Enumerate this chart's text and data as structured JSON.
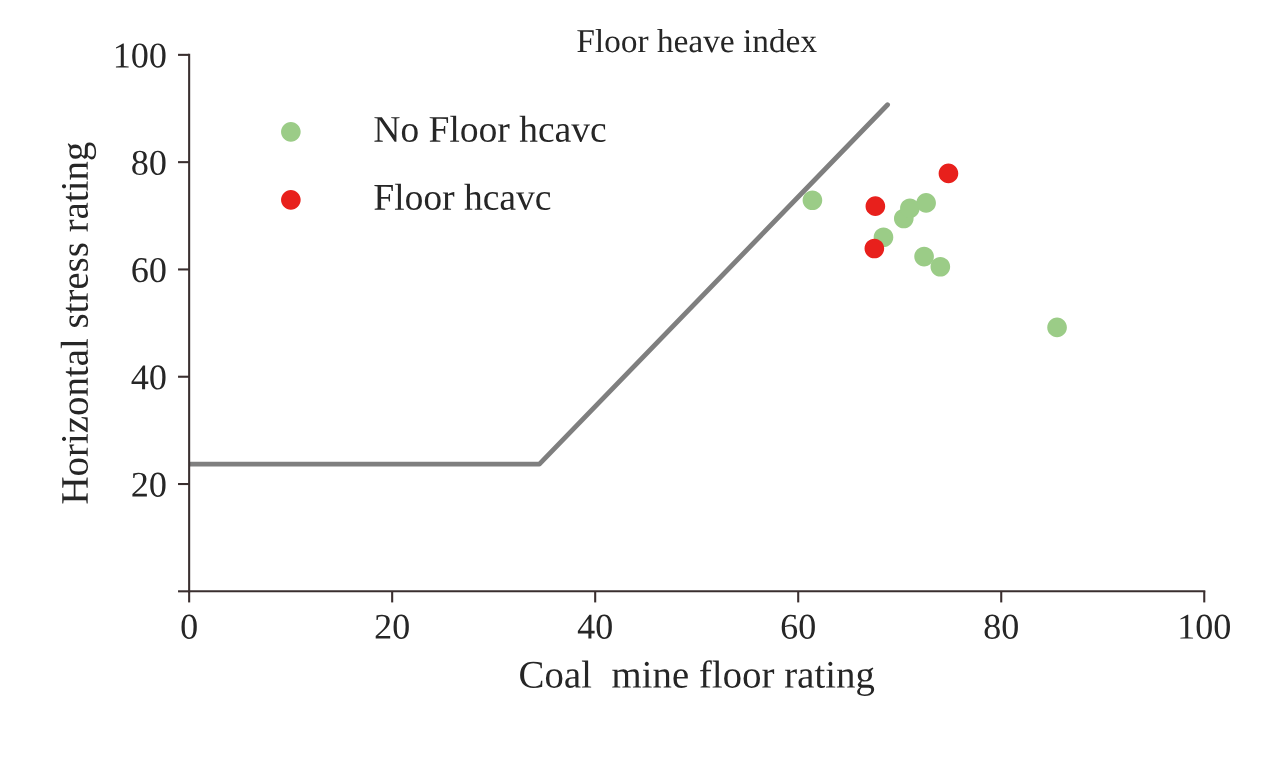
{
  "chart_data": {
    "type": "scatter",
    "title": "Floor heave index",
    "xlabel": "Coal  mine floor rating",
    "ylabel": "Horizontal stress rating",
    "xlim": [
      0,
      100
    ],
    "ylim": [
      0,
      100
    ],
    "xticks": [
      0,
      20,
      40,
      60,
      80,
      100
    ],
    "yticks": [
      {
        "value": 0,
        "label": null
      },
      20,
      40,
      60,
      80,
      100
    ],
    "legend": "top left",
    "grid": false,
    "series": [
      {
        "name": "No Floor hcavc",
        "marker": "circle",
        "color": "#9bcc87",
        "x": [
          61.4,
          68.4,
          70.4,
          71.0,
          72.6,
          72.4,
          74.0,
          85.5
        ],
        "values": [
          72.9,
          66.0,
          69.5,
          71.4,
          72.4,
          62.4,
          60.5,
          49.2
        ]
      },
      {
        "name": "Floor hcavc",
        "marker": "circle",
        "color": "#e8201c",
        "x": [
          67.6,
          74.8,
          67.5
        ],
        "values": [
          71.8,
          77.9,
          63.9
        ]
      },
      {
        "type": "line",
        "marker": "none",
        "color": "#7f7f7f",
        "x": [
          0,
          34.5,
          68.8
        ],
        "values": [
          23.7,
          23.7,
          90.7
        ]
      }
    ]
  }
}
